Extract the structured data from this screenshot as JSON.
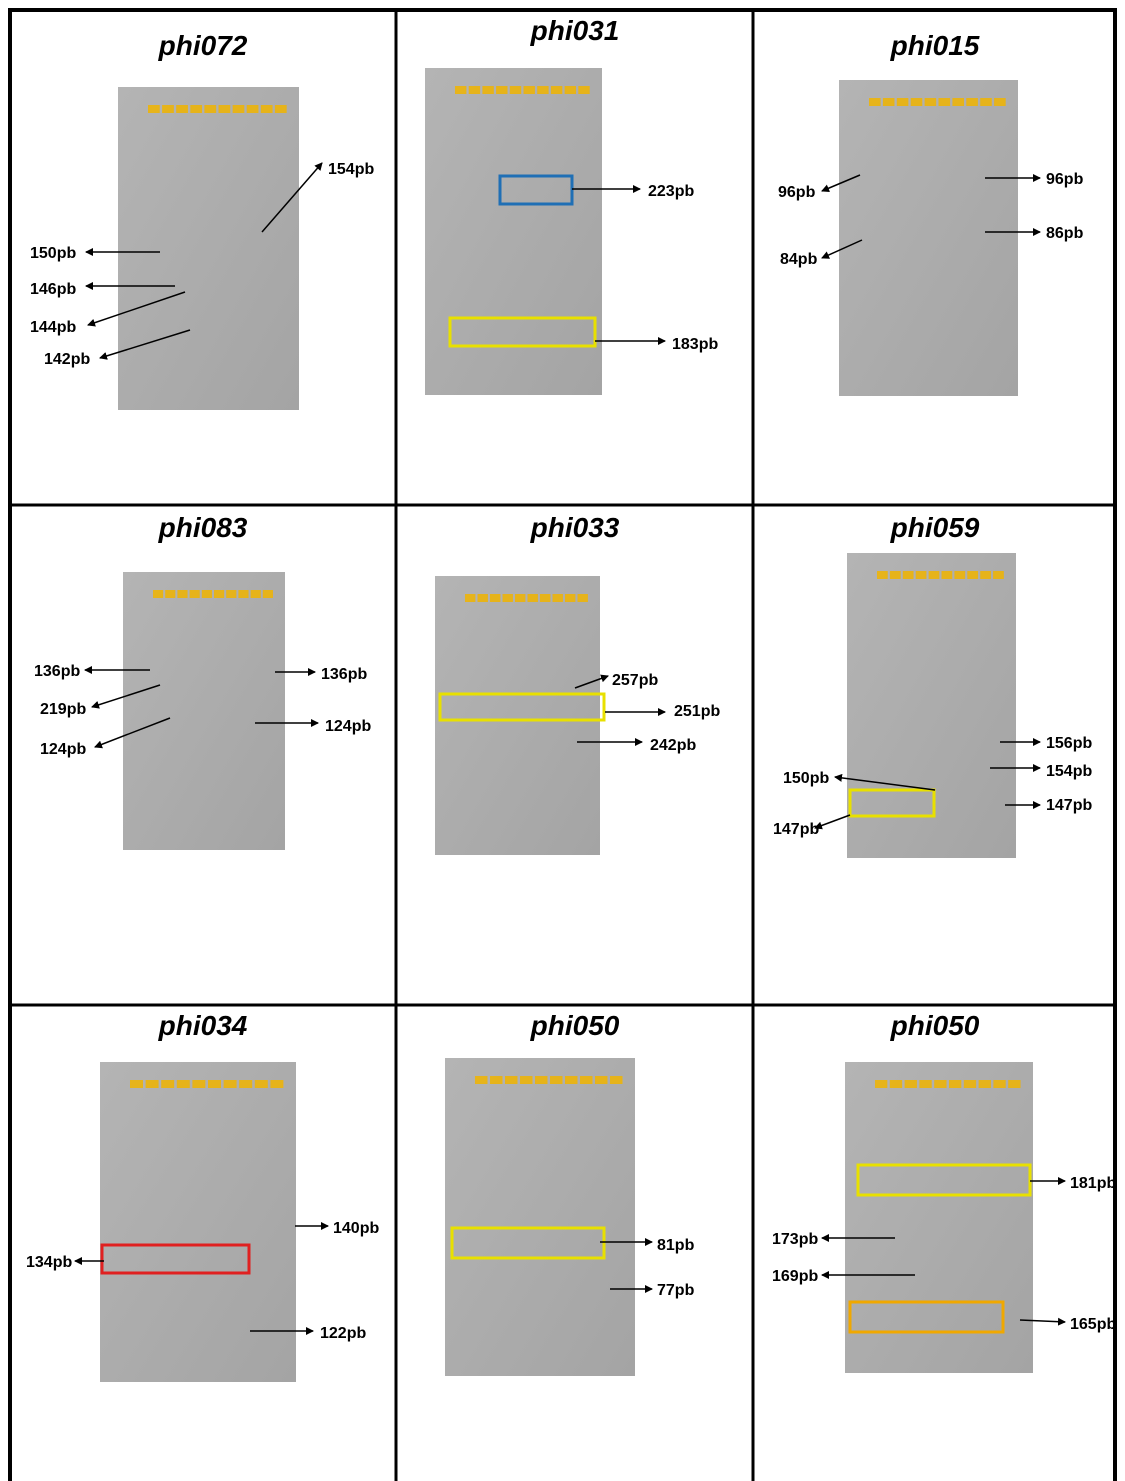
{
  "panels": [
    {
      "title": "phi072",
      "labels": [
        "154pb",
        "150pb",
        "146pb",
        "144pb",
        "142pb"
      ]
    },
    {
      "title": "phi031",
      "labels": [
        "223pb",
        "183pb"
      ]
    },
    {
      "title": "phi015",
      "labels": [
        "96pb",
        "96pb",
        "86pb",
        "84pb"
      ]
    },
    {
      "title": "phi083",
      "labels": [
        "136pb",
        "136pb",
        "219pb",
        "124pb",
        "124pb"
      ]
    },
    {
      "title": "phi033",
      "labels": [
        "257pb",
        "251pb",
        "242pb"
      ]
    },
    {
      "title": "phi059",
      "labels": [
        "156pb",
        "154pb",
        "150pb",
        "147pb",
        "147pb"
      ]
    },
    {
      "title": "phi034",
      "labels": [
        "140pb",
        "134pb",
        "122pb"
      ]
    },
    {
      "title": "phi050",
      "labels": [
        "81pb",
        "77pb"
      ]
    },
    {
      "title": "phi050",
      "labels": [
        "181pb",
        "173pb",
        "169pb",
        "165pb"
      ]
    }
  ]
}
